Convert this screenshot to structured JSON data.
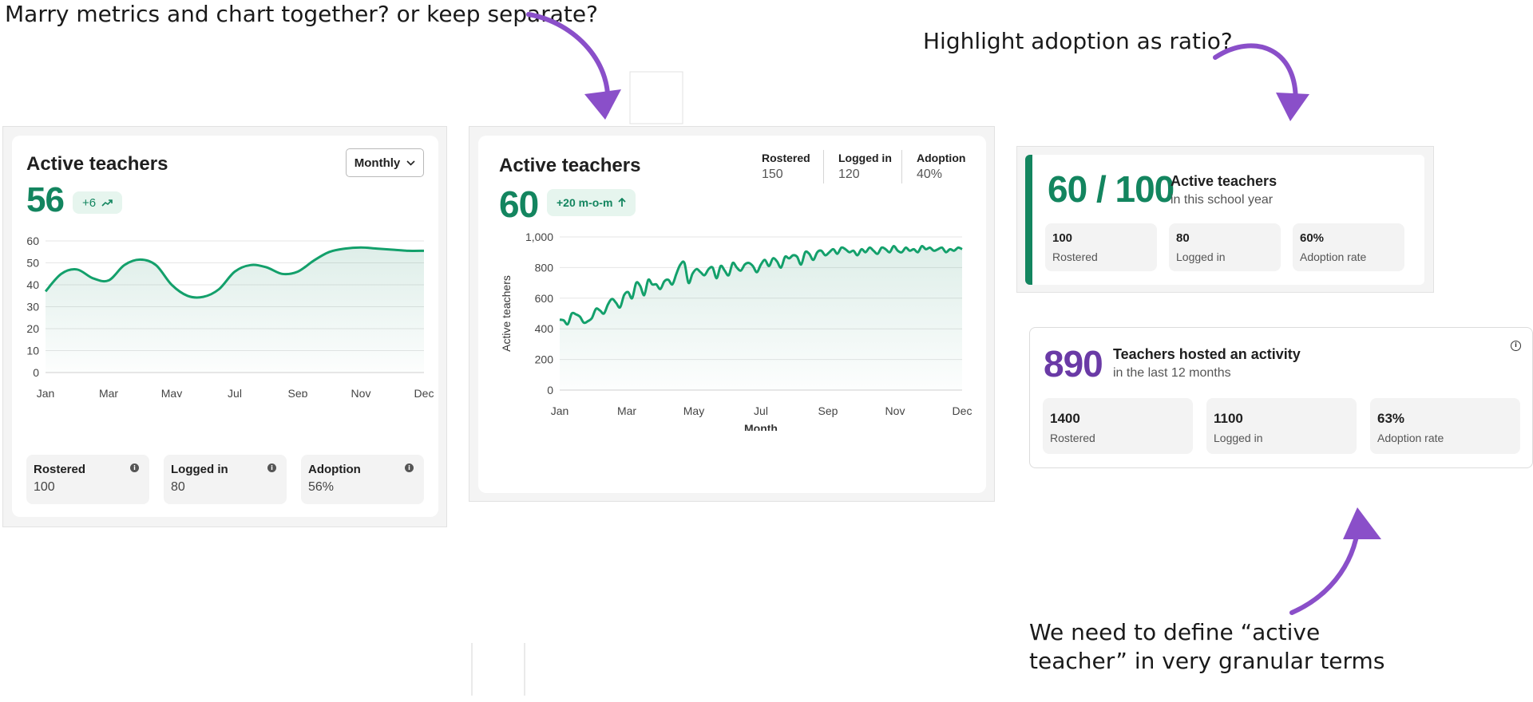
{
  "notes": {
    "marry": "Marry metrics and chart together? or keep separate?",
    "ratio": "Highlight adoption as ratio?",
    "define_line1": "We need to define “active",
    "define_line2": "teacher” in very granular terms"
  },
  "colors": {
    "accent_green": "#13855f",
    "purple": "#6a3aa6",
    "arrow": "#8a4fc9",
    "light_green": "#e6f5ee"
  },
  "card1": {
    "title": "Active teachers",
    "dropdown_label": "Monthly",
    "dropdown_icon": "chevron-down-icon",
    "value": "56",
    "delta": "+6",
    "delta_icon": "trend-up-icon",
    "metrics": [
      {
        "label": "Rostered",
        "value": "100"
      },
      {
        "label": "Logged in",
        "value": "80"
      },
      {
        "label": "Adoption",
        "value": "56%"
      }
    ]
  },
  "card2": {
    "title": "Active teachers",
    "value": "60",
    "delta": "+20 m-o-m",
    "delta_icon": "arrow-up-icon",
    "metrics": [
      {
        "label": "Rostered",
        "value": "150"
      },
      {
        "label": "Logged in",
        "value": "120"
      },
      {
        "label": "Adoption",
        "value": "40%"
      }
    ]
  },
  "card3": {
    "ratio": "60 / 100",
    "title": "Active teachers",
    "subtitle": "in this school year",
    "metrics": [
      {
        "value": "100",
        "label": "Rostered"
      },
      {
        "value": "80",
        "label": "Logged in"
      },
      {
        "value": "60%",
        "label": "Adoption rate"
      }
    ]
  },
  "card4": {
    "value": "890",
    "title": "Teachers hosted an activity",
    "subtitle": "in the last 12 months",
    "info_icon": "info-icon",
    "metrics": [
      {
        "value": "1400",
        "label": "Rostered"
      },
      {
        "value": "1100",
        "label": "Logged in"
      },
      {
        "value": "63%",
        "label": "Adoption rate"
      }
    ]
  },
  "chart_data": [
    {
      "type": "area",
      "title": "",
      "xlabel": "",
      "ylabel": "",
      "ylim": [
        0,
        60
      ],
      "yticks": [
        "0",
        "10",
        "20",
        "30",
        "40",
        "50",
        "60"
      ],
      "xtick_labels": [
        "Jan",
        "Mar",
        "May",
        "Jul",
        "Sep",
        "Nov",
        "Dec"
      ],
      "grid": true,
      "x": [
        0,
        1,
        2,
        3,
        4,
        5,
        6,
        7,
        8,
        9,
        10,
        11,
        12,
        13,
        14,
        15,
        16,
        17,
        18,
        19,
        20,
        21,
        22,
        23,
        24
      ],
      "series": [
        {
          "values": [
            37,
            45,
            47,
            43,
            42,
            49,
            51.5,
            49,
            40,
            35,
            34.5,
            38,
            46,
            49,
            48,
            45,
            46,
            51,
            55,
            56.5,
            57,
            56.5,
            56,
            55.5,
            55.5
          ]
        }
      ]
    },
    {
      "type": "area",
      "title": "",
      "xlabel": "Month",
      "ylabel": "Active teachers",
      "ylim": [
        0,
        1000
      ],
      "yticks": [
        "0",
        "200",
        "400",
        "600",
        "800",
        "1,000"
      ],
      "xtick_labels": [
        "Jan",
        "Mar",
        "May",
        "Jul",
        "Sep",
        "Nov",
        "Dec"
      ],
      "grid": true,
      "x": [
        0,
        1,
        2,
        3,
        4,
        5,
        6,
        7,
        8,
        9,
        10,
        11,
        12,
        13,
        14,
        15,
        16,
        17,
        18,
        19,
        20,
        21,
        22,
        23,
        24,
        25,
        26,
        27,
        28,
        29,
        30,
        31,
        32,
        33,
        34,
        35,
        36,
        37,
        38,
        39,
        40,
        41,
        42,
        43,
        44,
        45,
        46,
        47,
        48,
        49,
        50,
        51,
        52,
        53,
        54,
        55,
        56,
        57,
        58,
        59,
        60,
        61,
        62,
        63,
        64,
        65,
        66,
        67,
        68,
        69,
        70,
        71,
        72,
        73,
        74,
        75,
        76,
        77,
        78,
        79,
        80,
        81,
        82,
        83,
        84,
        85,
        86,
        87,
        88,
        89,
        90,
        91,
        92,
        93,
        94,
        95,
        96,
        97,
        98,
        99,
        100
      ],
      "series": [
        {
          "values": [
            460,
            455,
            430,
            500,
            495,
            480,
            440,
            450,
            470,
            530,
            520,
            500,
            560,
            595,
            570,
            540,
            620,
            640,
            600,
            700,
            680,
            620,
            720,
            690,
            690,
            660,
            710,
            720,
            690,
            760,
            820,
            830,
            700,
            760,
            790,
            770,
            750,
            790,
            800,
            730,
            810,
            780,
            750,
            830,
            800,
            780,
            820,
            830,
            810,
            770,
            820,
            850,
            810,
            860,
            840,
            800,
            870,
            860,
            880,
            870,
            820,
            900,
            890,
            850,
            900,
            910,
            880,
            900,
            920,
            890,
            930,
            920,
            900,
            910,
            880,
            920,
            900,
            930,
            910,
            890,
            930,
            920,
            900,
            940,
            910,
            900,
            930,
            910,
            920,
            900,
            940,
            920,
            930,
            910,
            920,
            930,
            900,
            920,
            910,
            930,
            920
          ]
        }
      ]
    }
  ]
}
